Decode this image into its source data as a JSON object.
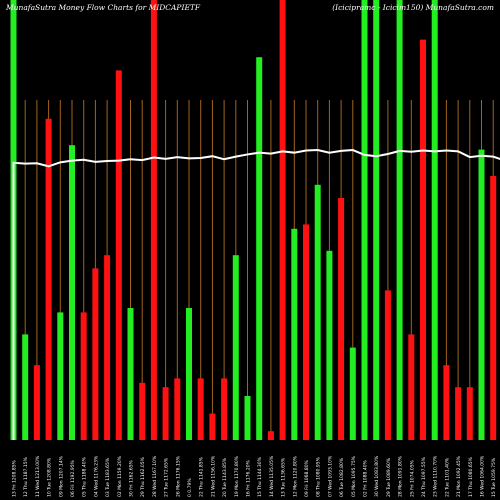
{
  "chart_data": {
    "type": "bar",
    "title_left": "MunafaSutra  Money Flow  Charts for MIDCAPIETF",
    "title_right": "(Icicipramc - Icicim150) MunafaSutra.com",
    "xlabel": "",
    "ylabel": "",
    "ylim": [
      0,
      100
    ],
    "grid": "vertical",
    "colors": {
      "up": "#22ee22",
      "down": "#ff1111",
      "line": "#ffffff",
      "grid": "#a0641e",
      "background": "#000000"
    },
    "categories": [
      "Fri 13 Jun 2025 0.07%",
      "Thu 12 Jun 2025 -1.71%",
      "Wed 11 Jun 2025 -0.35%",
      "Tue 10 Jun 2025 -0.42%",
      "Mon 09 Jun 2025 0.42%",
      "Fri 06 Jun 2025 0.34%",
      "Thu 05 Jun 2025 -0.06%",
      "Wed 04 Jun 2025 -0.48%",
      "Tue 03 Jun 2025 0.52%",
      "Mon 02 Jun 2025 -0.28%",
      "Fri 30 May 2025 -0.06%",
      "Thu 29 May 2025 -0.84%",
      "Wed 28 May 2025 -0.93%",
      "Tue 27 May 2025 0.06%",
      "Mon 26 May 2025 -0.09%",
      "0 0.79%",
      "Thu 22 May 2025 0.88%",
      "Wed 21 May 2025 -0.91%",
      "Tue 20 May 2025 -2.34%",
      "Mon 19 May 2025 -0.48%",
      "Fri 16 May 2025 2.78%",
      "Thu 15 May 2025 0.81%",
      "Wed 14 May 2025 -0.12%",
      "Tue 13 May 2025 1.76%",
      "Mon 12 May 2025 4.95%",
      "Fri 09 May 2025 -1.13%",
      "Thu 08 May 2025 -1.07%",
      "Wed 07 May 2025 0.94%",
      "Tue 06 May 2025 -1.21%",
      "Mon 05 May 2025 0.68%",
      "Fri 02 May 2025 0.46%",
      "Wed 30 Apr 2025 -0.53%",
      "Tue 29 Apr 2025 -0.17%",
      "Mon 28 Apr 2025 1.56%",
      "Fri 25 Apr 2025 -2.12%",
      "Thu 24 Apr 2025 -1.21%",
      "Wed 23 Apr 2025 0.84%",
      "Tue 22 Apr 2025 -0.06%",
      "Mon 21 Apr 2025 1.11%",
      "Thu 17 Apr 2025 -0.06%",
      "Wed 16 Apr 2025 -0.47%",
      "Tue 15 Apr 2025 -0.79%",
      "Fri 11 Apr 2025 -0.34%"
    ],
    "display_labels": [
      "13 Fri 1208.85%",
      "12 Thu 1187.15%",
      "11 Wed 1213.00%",
      "10 Tue 1208.80%",
      "09 Mon 1207.14%",
      "06 Fri 1192.95%",
      "05 Thu 1188.40%",
      "04 Wed 1176.23%",
      "03 Tue 1183.65%",
      "02 Mon 1159.20%",
      "30 Fri 1162.65%",
      "29 Thu 1162.05%",
      "28 Wed 1167.10%",
      "27 Tue 1172.65%",
      "26 Mon 1176.15%",
      "0  0.79%",
      "22 Thu 1141.85%",
      "21 Wed 1156.10%",
      "20 Tue 1143.85%",
      "19 Mon 1170.80%",
      "16 Fri 1176.20%",
      "15 Thu 1144.30%",
      "14 Wed 1135.05%",
      "13 Tue 1136.65%",
      "12 Mon 1120.80%",
      "09 Fri 1068.80%",
      "08 Thu 1080.95%",
      "07 Wed 1093.10%",
      "06 Tue 1082.80%",
      "05 Mon 1095.75%",
      "02 Fri 1088.40%",
      "30 Wed 1083.80%",
      "29 Tue 1089.60%",
      "28 Mon 1091.80%",
      "25 Fri 1074.05%",
      "24 Thu 1097.55%",
      "23 Wed 1110.70%",
      "22 Tue 1101.40%",
      "21 Mon 1092.45%",
      "17 Thu 1080.65%",
      "16 Wed 1064.00%",
      "15 Tue 1059.75%",
      "11 Fri 1041.60%"
    ],
    "series": [
      {
        "values": [
          100,
          24,
          17,
          73,
          29,
          67,
          29,
          39,
          42,
          84,
          30,
          13,
          100,
          12,
          14,
          30,
          14,
          6,
          14,
          42,
          10,
          87,
          2,
          100,
          48,
          49,
          58,
          43,
          55,
          21,
          100,
          100,
          34,
          100,
          24,
          91,
          100,
          17,
          12,
          12,
          66,
          60,
          5
        ],
        "direction": [
          "up",
          "up",
          "down",
          "down",
          "up",
          "up",
          "down",
          "down",
          "down",
          "down",
          "up",
          "down",
          "down",
          "down",
          "down",
          "up",
          "down",
          "down",
          "down",
          "up",
          "up",
          "up",
          "down",
          "down",
          "up",
          "down",
          "up",
          "up",
          "down",
          "up",
          "up",
          "up",
          "down",
          "up",
          "down",
          "down",
          "up",
          "down",
          "down",
          "down",
          "up",
          "down",
          "down"
        ]
      },
      {
        "name": "",
        "type": "line",
        "values": [
          63,
          62.8,
          62.9,
          62.2,
          63.1,
          63.5,
          63.7,
          63.2,
          63.4,
          63.5,
          63.8,
          63.6,
          64.2,
          63.9,
          64.3,
          64.0,
          64.1,
          64.5,
          63.8,
          64.4,
          64.9,
          65.3,
          65.1,
          65.6,
          65.3,
          65.8,
          65.9,
          65.3,
          65.7,
          65.9,
          64.8,
          64.5,
          65.0,
          65.7,
          65.5,
          65.8,
          65.6,
          65.8,
          65.6,
          64.3,
          64.6,
          64.4,
          63.5
        ]
      }
    ]
  }
}
